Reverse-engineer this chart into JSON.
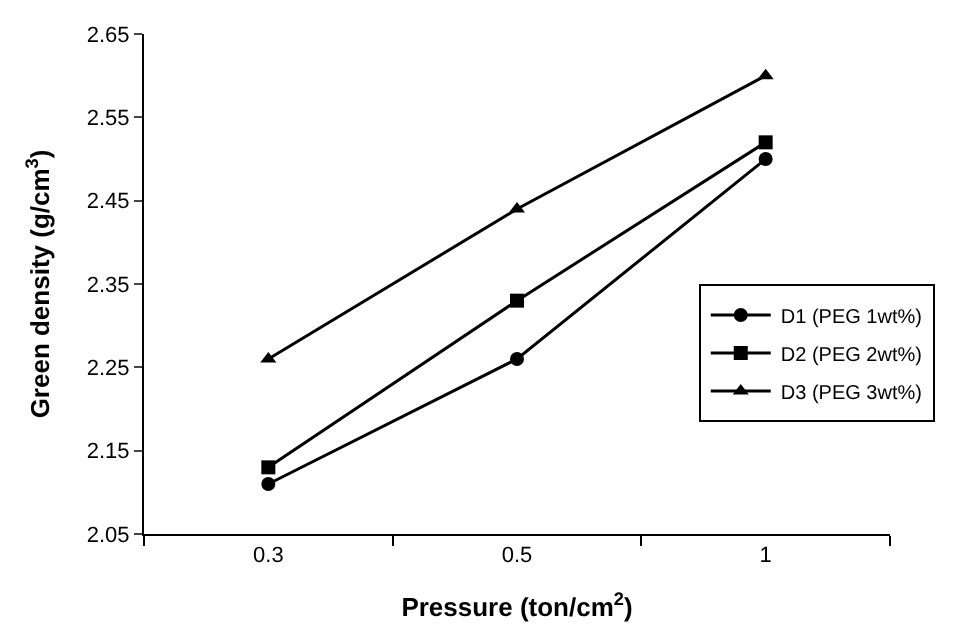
{
  "chart_data": {
    "type": "line",
    "xlabel": "Pressure (ton/cm$^{2}$)",
    "ylabel": "Green density (g/cm$^{3}$)",
    "categories": [
      "0.3",
      "0.5",
      "1"
    ],
    "series": [
      {
        "name": "D1 (PEG 1wt%)",
        "color": "#000000",
        "marker": "circle",
        "values": [
          2.11,
          2.26,
          2.5
        ]
      },
      {
        "name": "D2 (PEG 2wt%)",
        "color": "#000000",
        "marker": "square",
        "values": [
          2.13,
          2.33,
          2.52
        ]
      },
      {
        "name": "D3 (PEG 3wt%)",
        "color": "#000000",
        "marker": "triangle",
        "values": [
          2.26,
          2.44,
          2.6
        ]
      }
    ],
    "ylim": [
      2.05,
      2.65
    ],
    "yticks": [
      2.05,
      2.15,
      2.25,
      2.35,
      2.45,
      2.55,
      2.65
    ],
    "legend": "right",
    "line_style": "solid"
  }
}
